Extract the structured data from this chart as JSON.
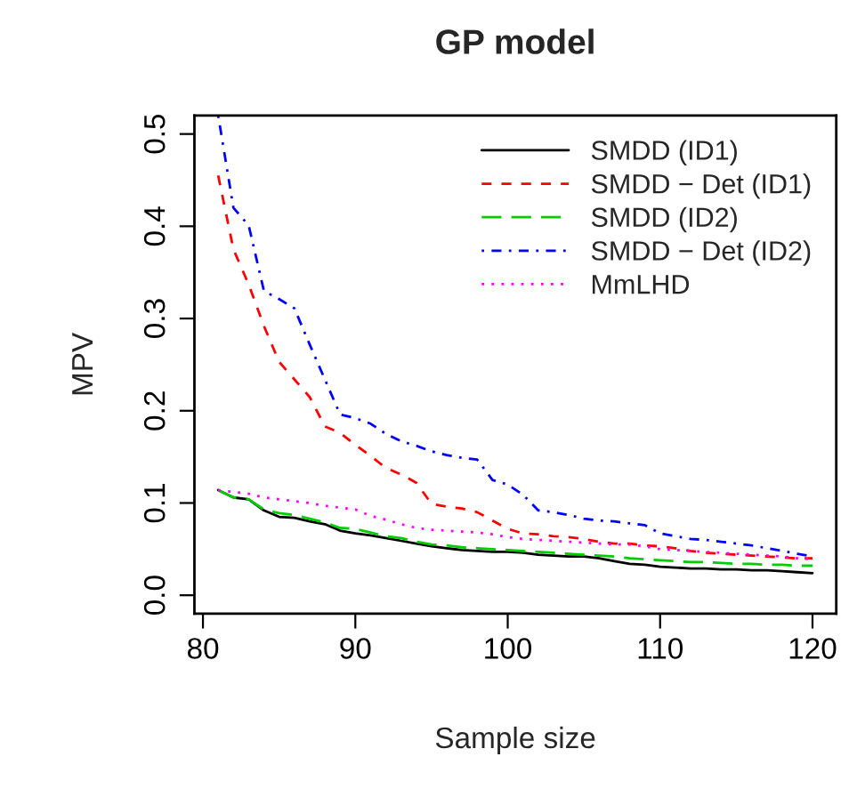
{
  "chart_data": {
    "type": "line",
    "title": "GP model",
    "xlabel": "Sample size",
    "ylabel": "MPV",
    "x": [
      81,
      82,
      83,
      84,
      85,
      86,
      87,
      88,
      89,
      90,
      91,
      92,
      93,
      94,
      95,
      96,
      97,
      98,
      99,
      100,
      101,
      102,
      103,
      104,
      105,
      106,
      107,
      108,
      109,
      110,
      111,
      112,
      113,
      114,
      115,
      116,
      117,
      118,
      119,
      120
    ],
    "xlim": [
      79.44,
      121.56
    ],
    "xticks": [
      80,
      90,
      100,
      110,
      120
    ],
    "ylim": [
      -0.02,
      0.52
    ],
    "yticks": [
      {
        "value": 0,
        "label": "0.0"
      },
      0.1,
      0.2,
      0.3,
      0.4,
      0.5
    ],
    "grid": false,
    "legend": "top right",
    "marker": "none",
    "series": [
      {
        "name": "SMDD (ID1)",
        "color": "#000000",
        "line_style": "solid",
        "values": [
          0.114,
          0.106,
          0.104,
          0.092,
          0.085,
          0.084,
          0.08,
          0.077,
          0.07,
          0.067,
          0.065,
          0.062,
          0.059,
          0.056,
          0.053,
          0.051,
          0.049,
          0.048,
          0.047,
          0.047,
          0.046,
          0.044,
          0.043,
          0.042,
          0.042,
          0.04,
          0.037,
          0.034,
          0.033,
          0.031,
          0.03,
          0.029,
          0.029,
          0.028,
          0.028,
          0.027,
          0.027,
          0.026,
          0.025,
          0.024
        ]
      },
      {
        "name": "SMDD − Det (ID1)",
        "color": "#ff0000",
        "line_style": "dashed",
        "values": [
          0.455,
          0.375,
          0.337,
          0.292,
          0.253,
          0.234,
          0.215,
          0.183,
          0.176,
          0.163,
          0.151,
          0.138,
          0.131,
          0.122,
          0.099,
          0.096,
          0.094,
          0.09,
          0.081,
          0.072,
          0.067,
          0.066,
          0.064,
          0.063,
          0.061,
          0.058,
          0.056,
          0.056,
          0.054,
          0.053,
          0.051,
          0.048,
          0.046,
          0.045,
          0.044,
          0.043,
          0.042,
          0.041,
          0.04,
          0.04
        ]
      },
      {
        "name": "SMDD (ID2)",
        "color": "#00cd00",
        "line_style": "longdash",
        "values": [
          0.114,
          0.106,
          0.104,
          0.093,
          0.089,
          0.087,
          0.083,
          0.079,
          0.073,
          0.072,
          0.068,
          0.064,
          0.062,
          0.058,
          0.055,
          0.054,
          0.052,
          0.051,
          0.05,
          0.049,
          0.048,
          0.047,
          0.046,
          0.045,
          0.044,
          0.043,
          0.042,
          0.04,
          0.039,
          0.038,
          0.037,
          0.036,
          0.036,
          0.035,
          0.034,
          0.034,
          0.033,
          0.033,
          0.032,
          0.032
        ]
      },
      {
        "name": "SMDD − Det (ID2)",
        "color": "#0000ff",
        "line_style": "dashdot",
        "values": [
          0.52,
          0.42,
          0.401,
          0.33,
          0.321,
          0.311,
          0.272,
          0.234,
          0.196,
          0.192,
          0.186,
          0.175,
          0.167,
          0.162,
          0.156,
          0.152,
          0.149,
          0.147,
          0.125,
          0.12,
          0.109,
          0.092,
          0.09,
          0.087,
          0.083,
          0.081,
          0.08,
          0.078,
          0.076,
          0.067,
          0.064,
          0.061,
          0.06,
          0.058,
          0.056,
          0.054,
          0.051,
          0.048,
          0.045,
          0.042
        ]
      },
      {
        "name": "MmLHD",
        "color": "#ff00ff",
        "line_style": "dotted",
        "values": [
          0.114,
          0.112,
          0.11,
          0.106,
          0.104,
          0.102,
          0.1,
          0.097,
          0.095,
          0.093,
          0.086,
          0.082,
          0.077,
          0.073,
          0.071,
          0.07,
          0.069,
          0.068,
          0.066,
          0.063,
          0.061,
          0.06,
          0.059,
          0.058,
          0.057,
          0.056,
          0.055,
          0.055,
          0.053,
          0.05,
          0.049,
          0.048,
          0.047,
          0.046,
          0.045,
          0.044,
          0.043,
          0.042,
          0.04,
          0.039
        ]
      }
    ]
  }
}
